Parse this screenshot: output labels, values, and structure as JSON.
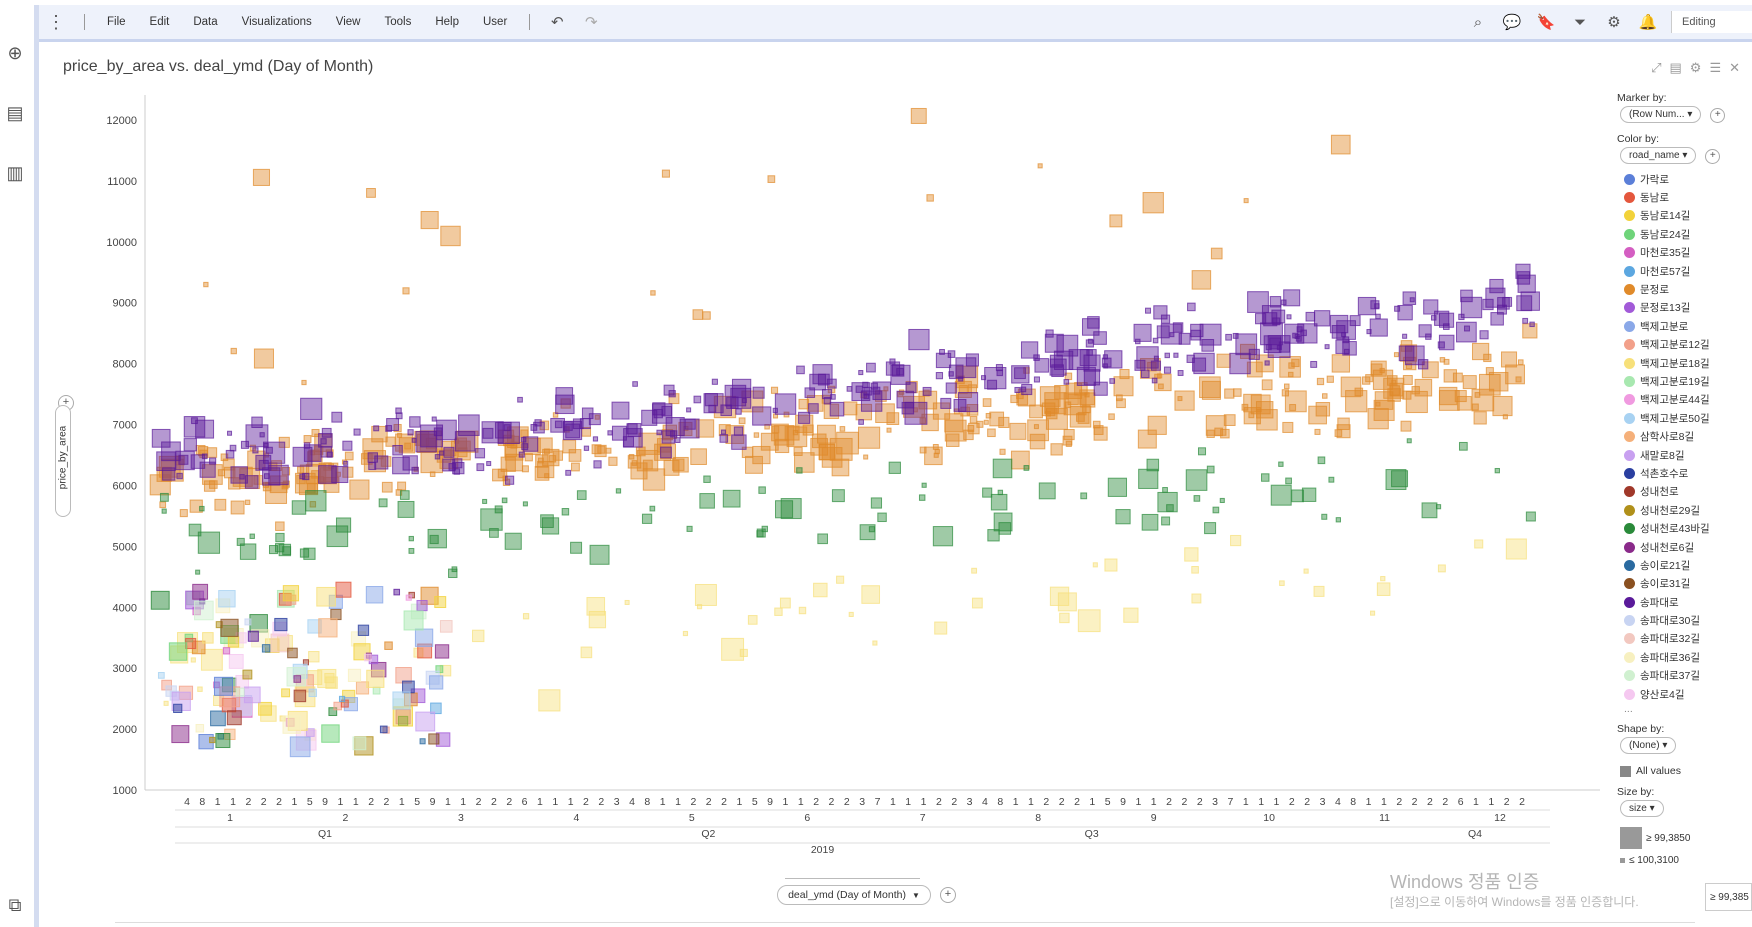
{
  "menubar": {
    "items": [
      "File",
      "Edit",
      "Data",
      "Visualizations",
      "View",
      "Tools",
      "Help",
      "User"
    ],
    "mode": "Editing",
    "icons": [
      "search-icon",
      "chat-icon",
      "bookmark-icon",
      "filter-icon",
      "gear-icon",
      "bell-icon"
    ]
  },
  "leftbar": {
    "icons": [
      "add-icon",
      "data-table-icon",
      "bar-chart-icon",
      "data-flow-icon"
    ]
  },
  "panel": {
    "title": "price_by_area vs. deal_ymd (Day of Month)"
  },
  "axes": {
    "y_selector": "price_by_area",
    "x_selector": "deal_ymd (Day of Month)"
  },
  "legend": {
    "marker_by_label": "Marker by:",
    "marker_by_value": "(Row Num...",
    "color_by_label": "Color by:",
    "color_by_value": "road_name",
    "color_items": [
      {
        "name": "가락로",
        "color": "#5b7fd8"
      },
      {
        "name": "동남로",
        "color": "#e4573d"
      },
      {
        "name": "동남로14길",
        "color": "#f2d23a"
      },
      {
        "name": "동남로24길",
        "color": "#6fd47a"
      },
      {
        "name": "마천로35길",
        "color": "#d45ec2"
      },
      {
        "name": "마천로57길",
        "color": "#5ca7e0"
      },
      {
        "name": "문정로",
        "color": "#e08a2a"
      },
      {
        "name": "문정로13길",
        "color": "#a25ad8"
      },
      {
        "name": "백제고분로",
        "color": "#8aa8e8"
      },
      {
        "name": "백제고분로12길",
        "color": "#f2a08a"
      },
      {
        "name": "백제고분로18길",
        "color": "#f7e07a"
      },
      {
        "name": "백제고분로19길",
        "color": "#a8e8b0"
      },
      {
        "name": "백제고분로44길",
        "color": "#f09ae0"
      },
      {
        "name": "백제고분로50길",
        "color": "#a8d2f2"
      },
      {
        "name": "삼학사로8길",
        "color": "#f5b07a"
      },
      {
        "name": "새말로8길",
        "color": "#c8a0f0"
      },
      {
        "name": "석촌호수로",
        "color": "#2a3fa0"
      },
      {
        "name": "성내천로",
        "color": "#a0382a"
      },
      {
        "name": "성내천로29길",
        "color": "#b0901a"
      },
      {
        "name": "성내천로43바길",
        "color": "#2a8a3a"
      },
      {
        "name": "성내천로6길",
        "color": "#8a2a8a"
      },
      {
        "name": "송이로21길",
        "color": "#2a6aa0"
      },
      {
        "name": "송이로31길",
        "color": "#8a5020"
      },
      {
        "name": "송파대로",
        "color": "#5a1a9a"
      },
      {
        "name": "송파대로30길",
        "color": "#c8d4f2"
      },
      {
        "name": "송파대로32길",
        "color": "#f2c8c0"
      },
      {
        "name": "송파대로36길",
        "color": "#f7f0c0"
      },
      {
        "name": "송파대로37길",
        "color": "#d0f0d0"
      },
      {
        "name": "양산로4길",
        "color": "#f5c8f0"
      }
    ],
    "more": "...",
    "shape_by_label": "Shape by:",
    "shape_by_value": "(None)",
    "all_values": "All values",
    "size_by_label": "Size by:",
    "size_by_value": "size",
    "size_max": "≥ 99,3850",
    "size_min": "≤ 100,3100"
  },
  "watermark": {
    "line1": "Windows 정품 인증",
    "line2": "[설정]으로 이동하여 Windows를 정품 인증합니다."
  },
  "tooltip": "≥ 99,385",
  "chart_data": {
    "type": "scatter",
    "title": "price_by_area vs. deal_ymd (Day of Month)",
    "xlabel": "deal_ymd (Day of Month)",
    "ylabel": "price_by_area",
    "ylim": [
      1000,
      12000
    ],
    "yticks": [
      1000,
      2000,
      3000,
      4000,
      5000,
      6000,
      7000,
      8000,
      9000,
      10000,
      11000,
      12000
    ],
    "x_hierarchy": {
      "year": "2019",
      "quarters": [
        "Q1",
        "Q2",
        "Q3",
        "Q4"
      ],
      "months": [
        "1",
        "2",
        "3",
        "4",
        "5",
        "6",
        "7",
        "8",
        "9",
        "10",
        "11",
        "12"
      ],
      "day_tick_labels": [
        "4",
        "8",
        "1",
        "1",
        "2",
        "2",
        "2",
        "1",
        "5",
        "9",
        "1",
        "1",
        "2",
        "2",
        "1",
        "5",
        "9",
        "1",
        "1",
        "2",
        "2",
        "2",
        "6",
        "1",
        "1",
        "1",
        "2",
        "2",
        "3",
        "4",
        "8",
        "1",
        "1",
        "2",
        "2",
        "2",
        "1",
        "5",
        "9",
        "1",
        "1",
        "2",
        "2",
        "2",
        "3",
        "7",
        "1",
        "1",
        "1",
        "2",
        "2",
        "3",
        "4",
        "8",
        "1",
        "1",
        "2",
        "2",
        "2",
        "1",
        "5",
        "9",
        "1",
        "1",
        "2",
        "2",
        "2",
        "3",
        "7",
        "1",
        "1",
        "1",
        "2",
        "2",
        "3",
        "4",
        "8",
        "1",
        "1",
        "2",
        "2",
        "2",
        "2",
        "6",
        "1",
        "1",
        "2",
        "2"
      ]
    },
    "grid": false,
    "legend_position": "right",
    "color_by": "road_name",
    "size_by": "size",
    "series": [
      {
        "name": "문정로",
        "color": "#e08a2a",
        "trend": [
          [
            0,
            6000
          ],
          [
            90,
            6500
          ],
          [
            180,
            7000
          ],
          [
            270,
            7400
          ],
          [
            365,
            7800
          ]
        ]
      },
      {
        "name": "송파대로",
        "color": "#5a1a9a",
        "trend": [
          [
            0,
            6400
          ],
          [
            90,
            6700
          ],
          [
            180,
            7600
          ],
          [
            270,
            8300
          ],
          [
            365,
            9000
          ]
        ]
      },
      {
        "name": "성내천로43바길",
        "color": "#2a8a3a",
        "trend": [
          [
            0,
            5000
          ],
          [
            90,
            5300
          ],
          [
            180,
            5600
          ],
          [
            270,
            5800
          ],
          [
            365,
            6200
          ]
        ]
      },
      {
        "name": "송파대로36길",
        "color": "#f7e07a",
        "trend": [
          [
            0,
            2900
          ],
          [
            90,
            3400
          ],
          [
            180,
            4000
          ],
          [
            270,
            4300
          ],
          [
            365,
            4600
          ]
        ]
      }
    ]
  }
}
